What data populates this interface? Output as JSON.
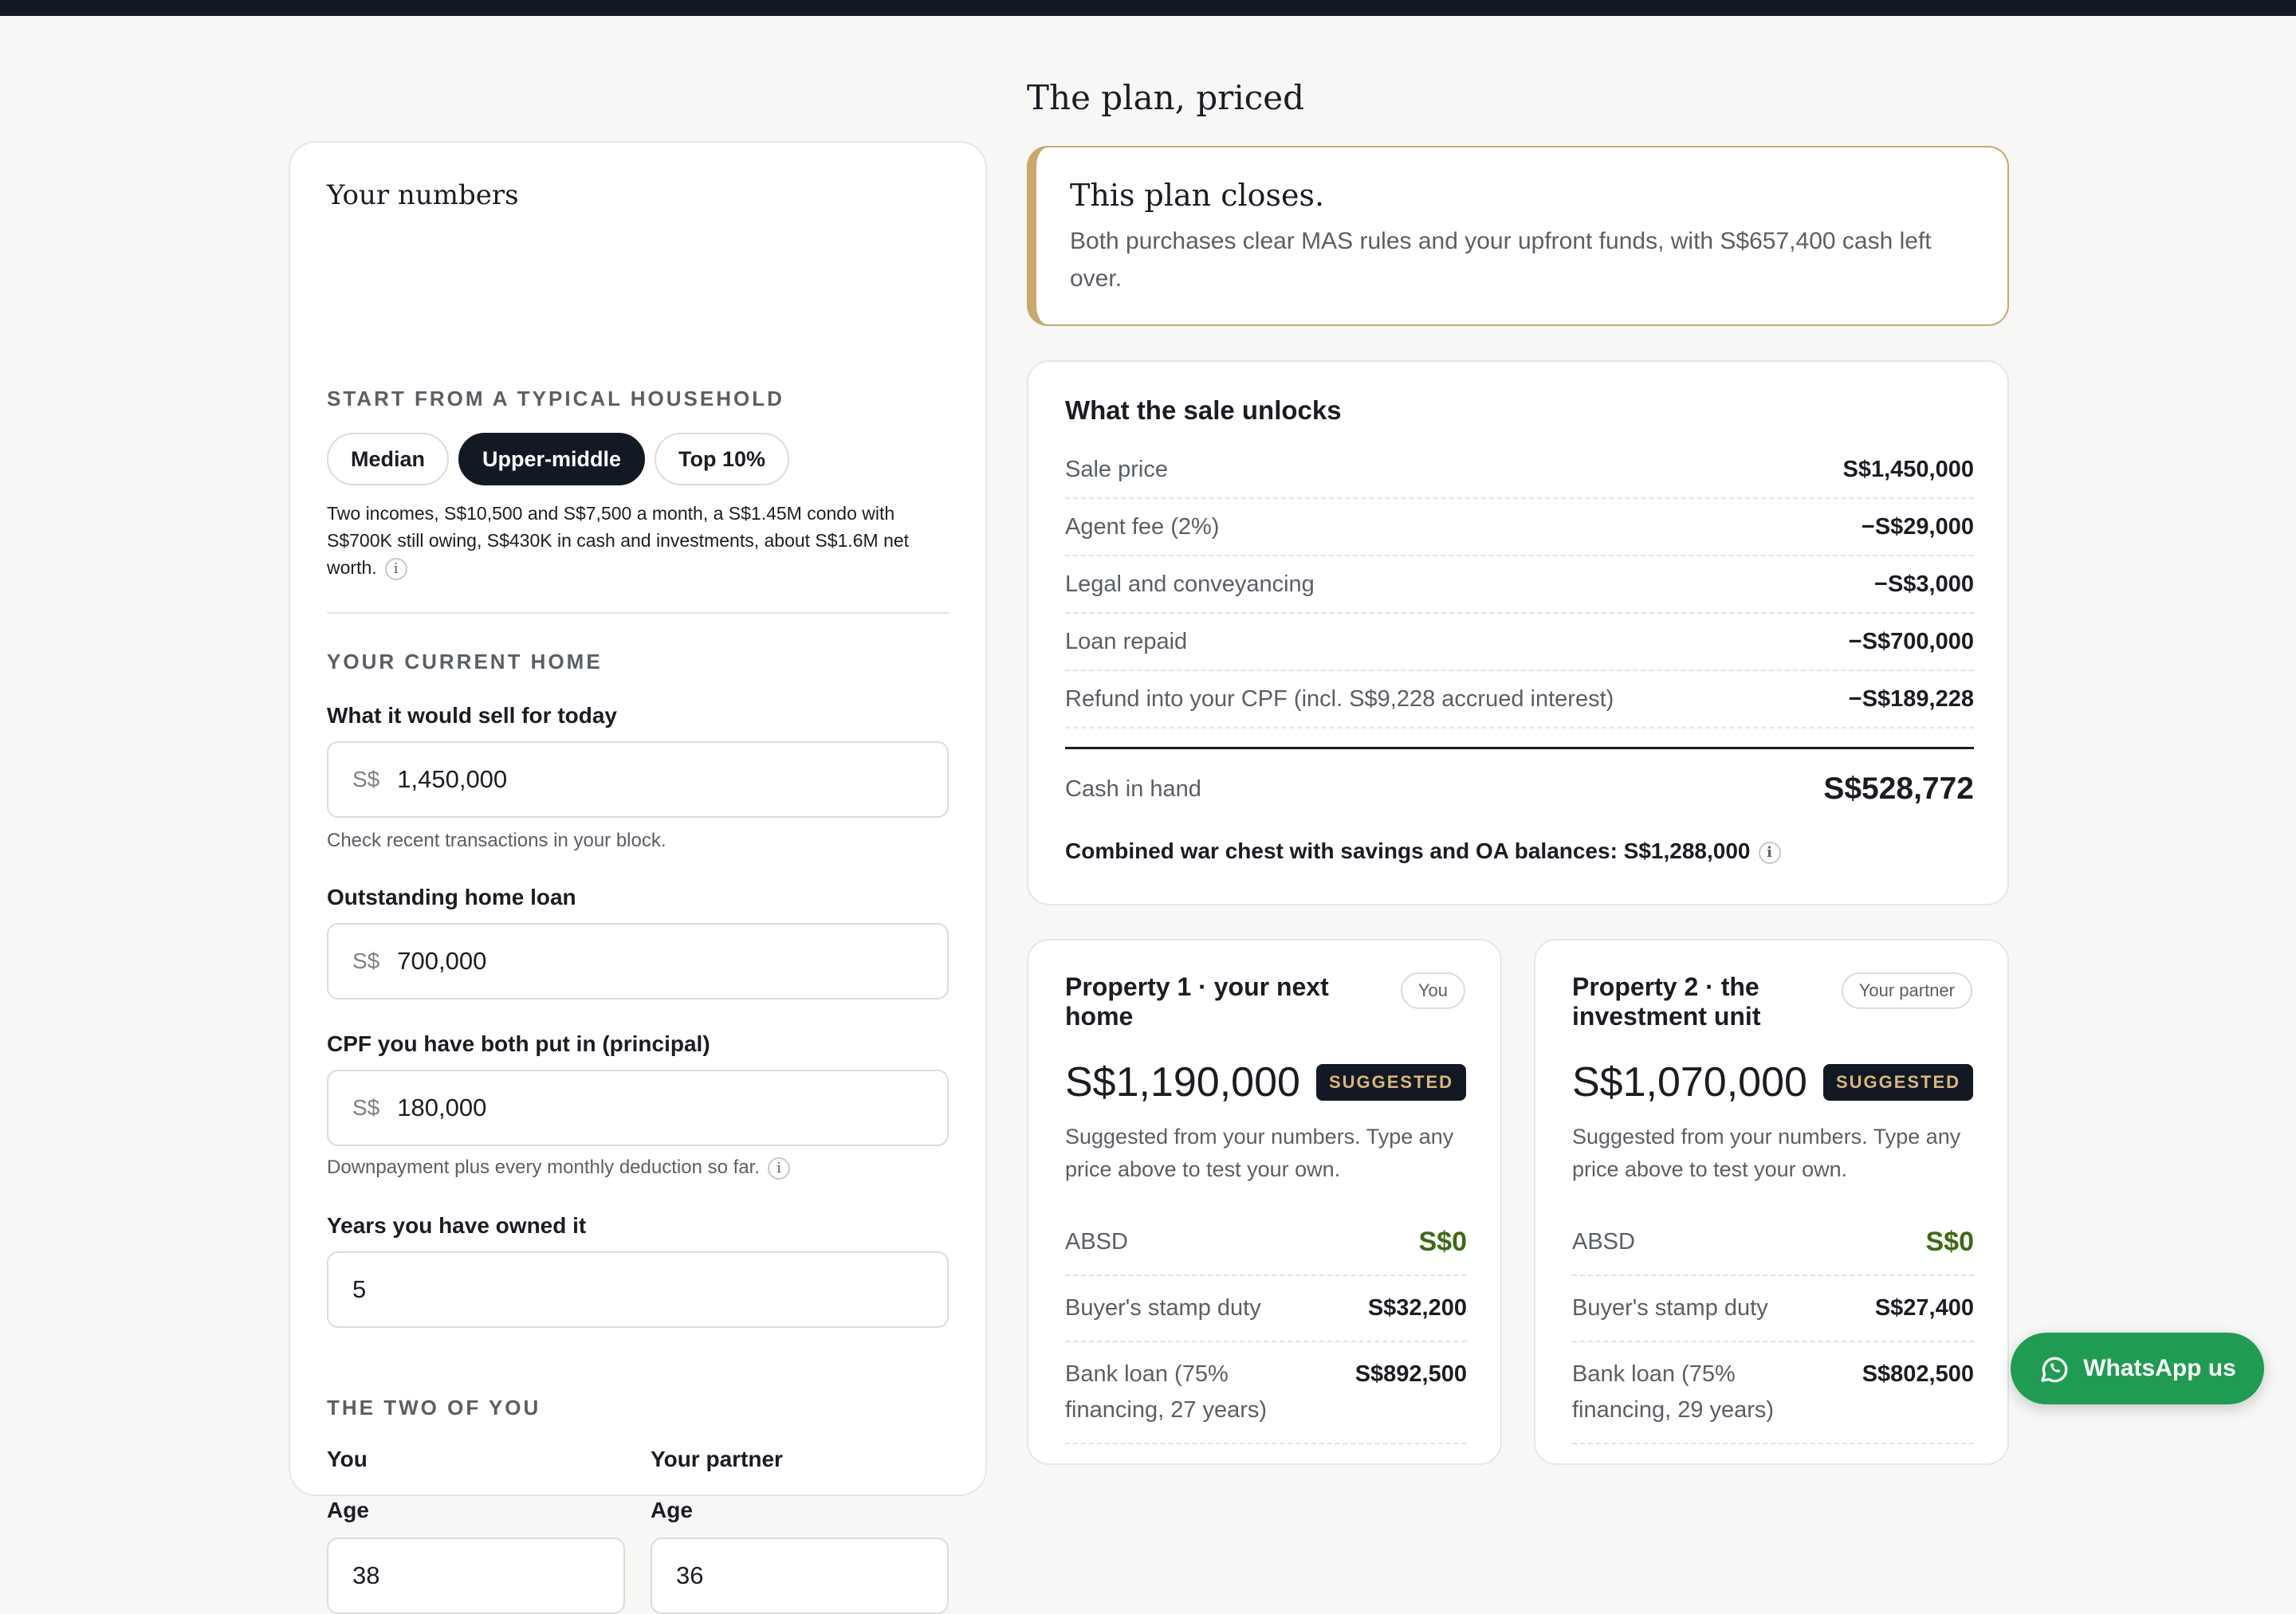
{
  "page_title": "The plan, priced",
  "your_numbers": {
    "title": "Your numbers",
    "household_label": "START FROM A TYPICAL HOUSEHOLD",
    "presets": [
      "Median",
      "Upper-middle",
      "Top 10%"
    ],
    "active_preset": "Upper-middle",
    "preset_description": "Two incomes, S$10,500 and S$7,500 a month, a S$1.45M condo with S$700K still owing, S$430K in cash and investments, about S$1.6M net worth.",
    "info_glyph": "i",
    "current_home_label": "YOUR CURRENT HOME",
    "sell_label": "What it would sell for today",
    "currency_prefix": "S$",
    "sell_value": "1,450,000",
    "sell_hint": "Check recent transactions in your block.",
    "loan_label": "Outstanding home loan",
    "loan_value": "700,000",
    "cpf_label": "CPF you have both put in (principal)",
    "cpf_value": "180,000",
    "cpf_hint": "Downpayment plus every monthly deduction so far.",
    "years_label": "Years you have owned it",
    "years_value": "5",
    "two_of_you_label": "THE TWO OF YOU",
    "you_label": "You",
    "partner_label": "Your partner",
    "age_label": "Age",
    "you_age": "38",
    "partner_age": "36"
  },
  "verdict": {
    "title": "This plan closes.",
    "text": "Both purchases clear MAS rules and your upfront funds, with S$657,400 cash left over."
  },
  "sale": {
    "title": "What the sale unlocks",
    "rows": [
      {
        "label": "Sale price",
        "value": "S$1,450,000"
      },
      {
        "label": "Agent fee (2%)",
        "value": "−S$29,000"
      },
      {
        "label": "Legal and conveyancing",
        "value": "−S$3,000"
      },
      {
        "label": "Loan repaid",
        "value": "−S$700,000"
      },
      {
        "label": "Refund into your CPF (incl. S$9,228 accrued interest)",
        "value": "−S$189,228"
      }
    ],
    "total_label": "Cash in hand",
    "total_value": "S$528,772",
    "combined": "Combined war chest with savings and OA balances: S$1,288,000"
  },
  "properties": [
    {
      "title": "Property 1 · your next home",
      "owner": "You",
      "price": "S$1,190,000",
      "badge": "SUGGESTED",
      "note": "Suggested from your numbers. Type any price above to test your own.",
      "absd_label": "ABSD",
      "absd_value": "S$0",
      "bsd_label": "Buyer's stamp duty",
      "bsd_value": "S$32,200",
      "loan_label": "Bank loan (75% financing, 27 years)",
      "loan_value": "S$892,500"
    },
    {
      "title": "Property 2 · the investment unit",
      "owner": "Your partner",
      "price": "S$1,070,000",
      "badge": "SUGGESTED",
      "note": "Suggested from your numbers. Type any price above to test your own.",
      "absd_label": "ABSD",
      "absd_value": "S$0",
      "bsd_label": "Buyer's stamp duty",
      "bsd_value": "S$27,400",
      "loan_label": "Bank loan (75% financing, 29 years)",
      "loan_value": "S$802,500"
    }
  ],
  "whatsapp_label": "WhatsApp us",
  "colors": {
    "dark": "#131924",
    "gold": "#c8a96a",
    "green": "#3d6b12",
    "whatsapp": "#1f9b52"
  }
}
